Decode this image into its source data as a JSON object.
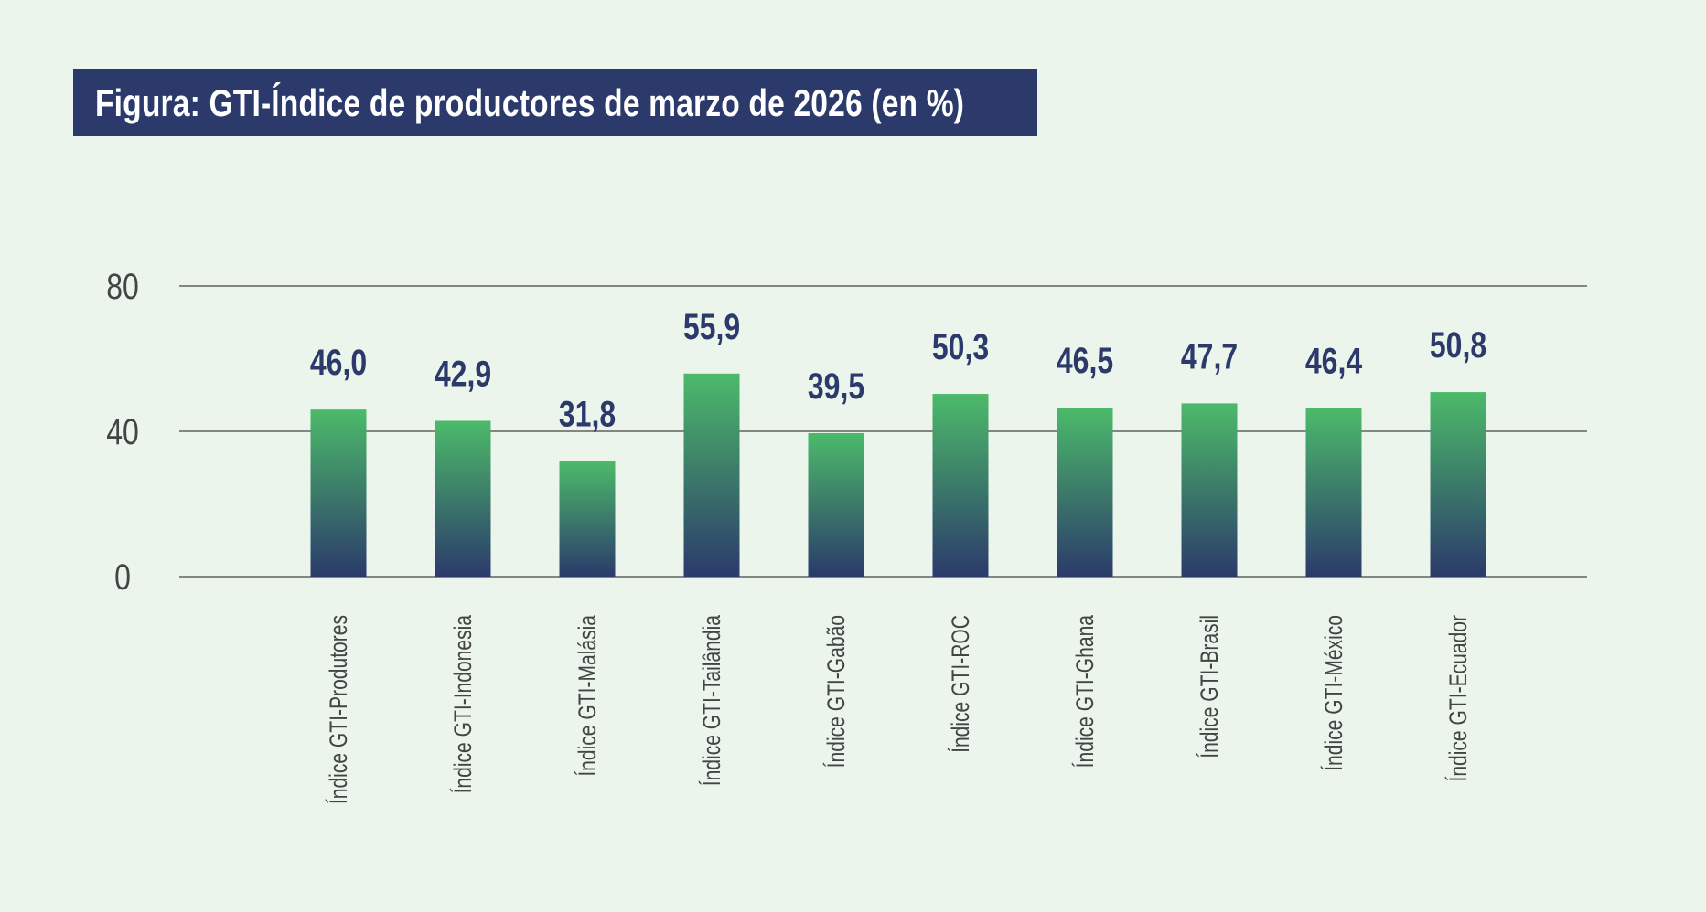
{
  "chart_data": {
    "type": "bar",
    "title": "Figura: GTI-Índice de productores de marzo de 2026 (en %)",
    "xlabel": "",
    "ylabel": "",
    "ylim": [
      0,
      80
    ],
    "yticks": [
      "0",
      "40",
      "80"
    ],
    "grid": true,
    "categories": [
      "Índice GTI-Produtores",
      "Índice GTI-Indonesia",
      "Índice GTI-Malásia",
      "Índice GTI-Tailândia",
      "Índice GTI-Gabão",
      "Índice GTI-ROC",
      "Índice GTI-Ghana",
      "Índice GTI-Brasil",
      "Índice GTI-México",
      "Índice GTI-Ecuador"
    ],
    "values": [
      46.0,
      42.9,
      31.8,
      55.9,
      39.5,
      50.3,
      46.5,
      47.7,
      46.4,
      50.8
    ],
    "data_labels": [
      "46,0",
      "42,9",
      "31,8",
      "55,9",
      "39,5",
      "50,3",
      "46,5",
      "47,7",
      "46,4",
      "50,8"
    ],
    "colors": {
      "bar_top": "#4cba6a",
      "bar_bottom": "#2b3a6b",
      "label": "#2b3a6b",
      "title_bg": "#2b3a6b",
      "background": "#ecf5ec"
    }
  }
}
